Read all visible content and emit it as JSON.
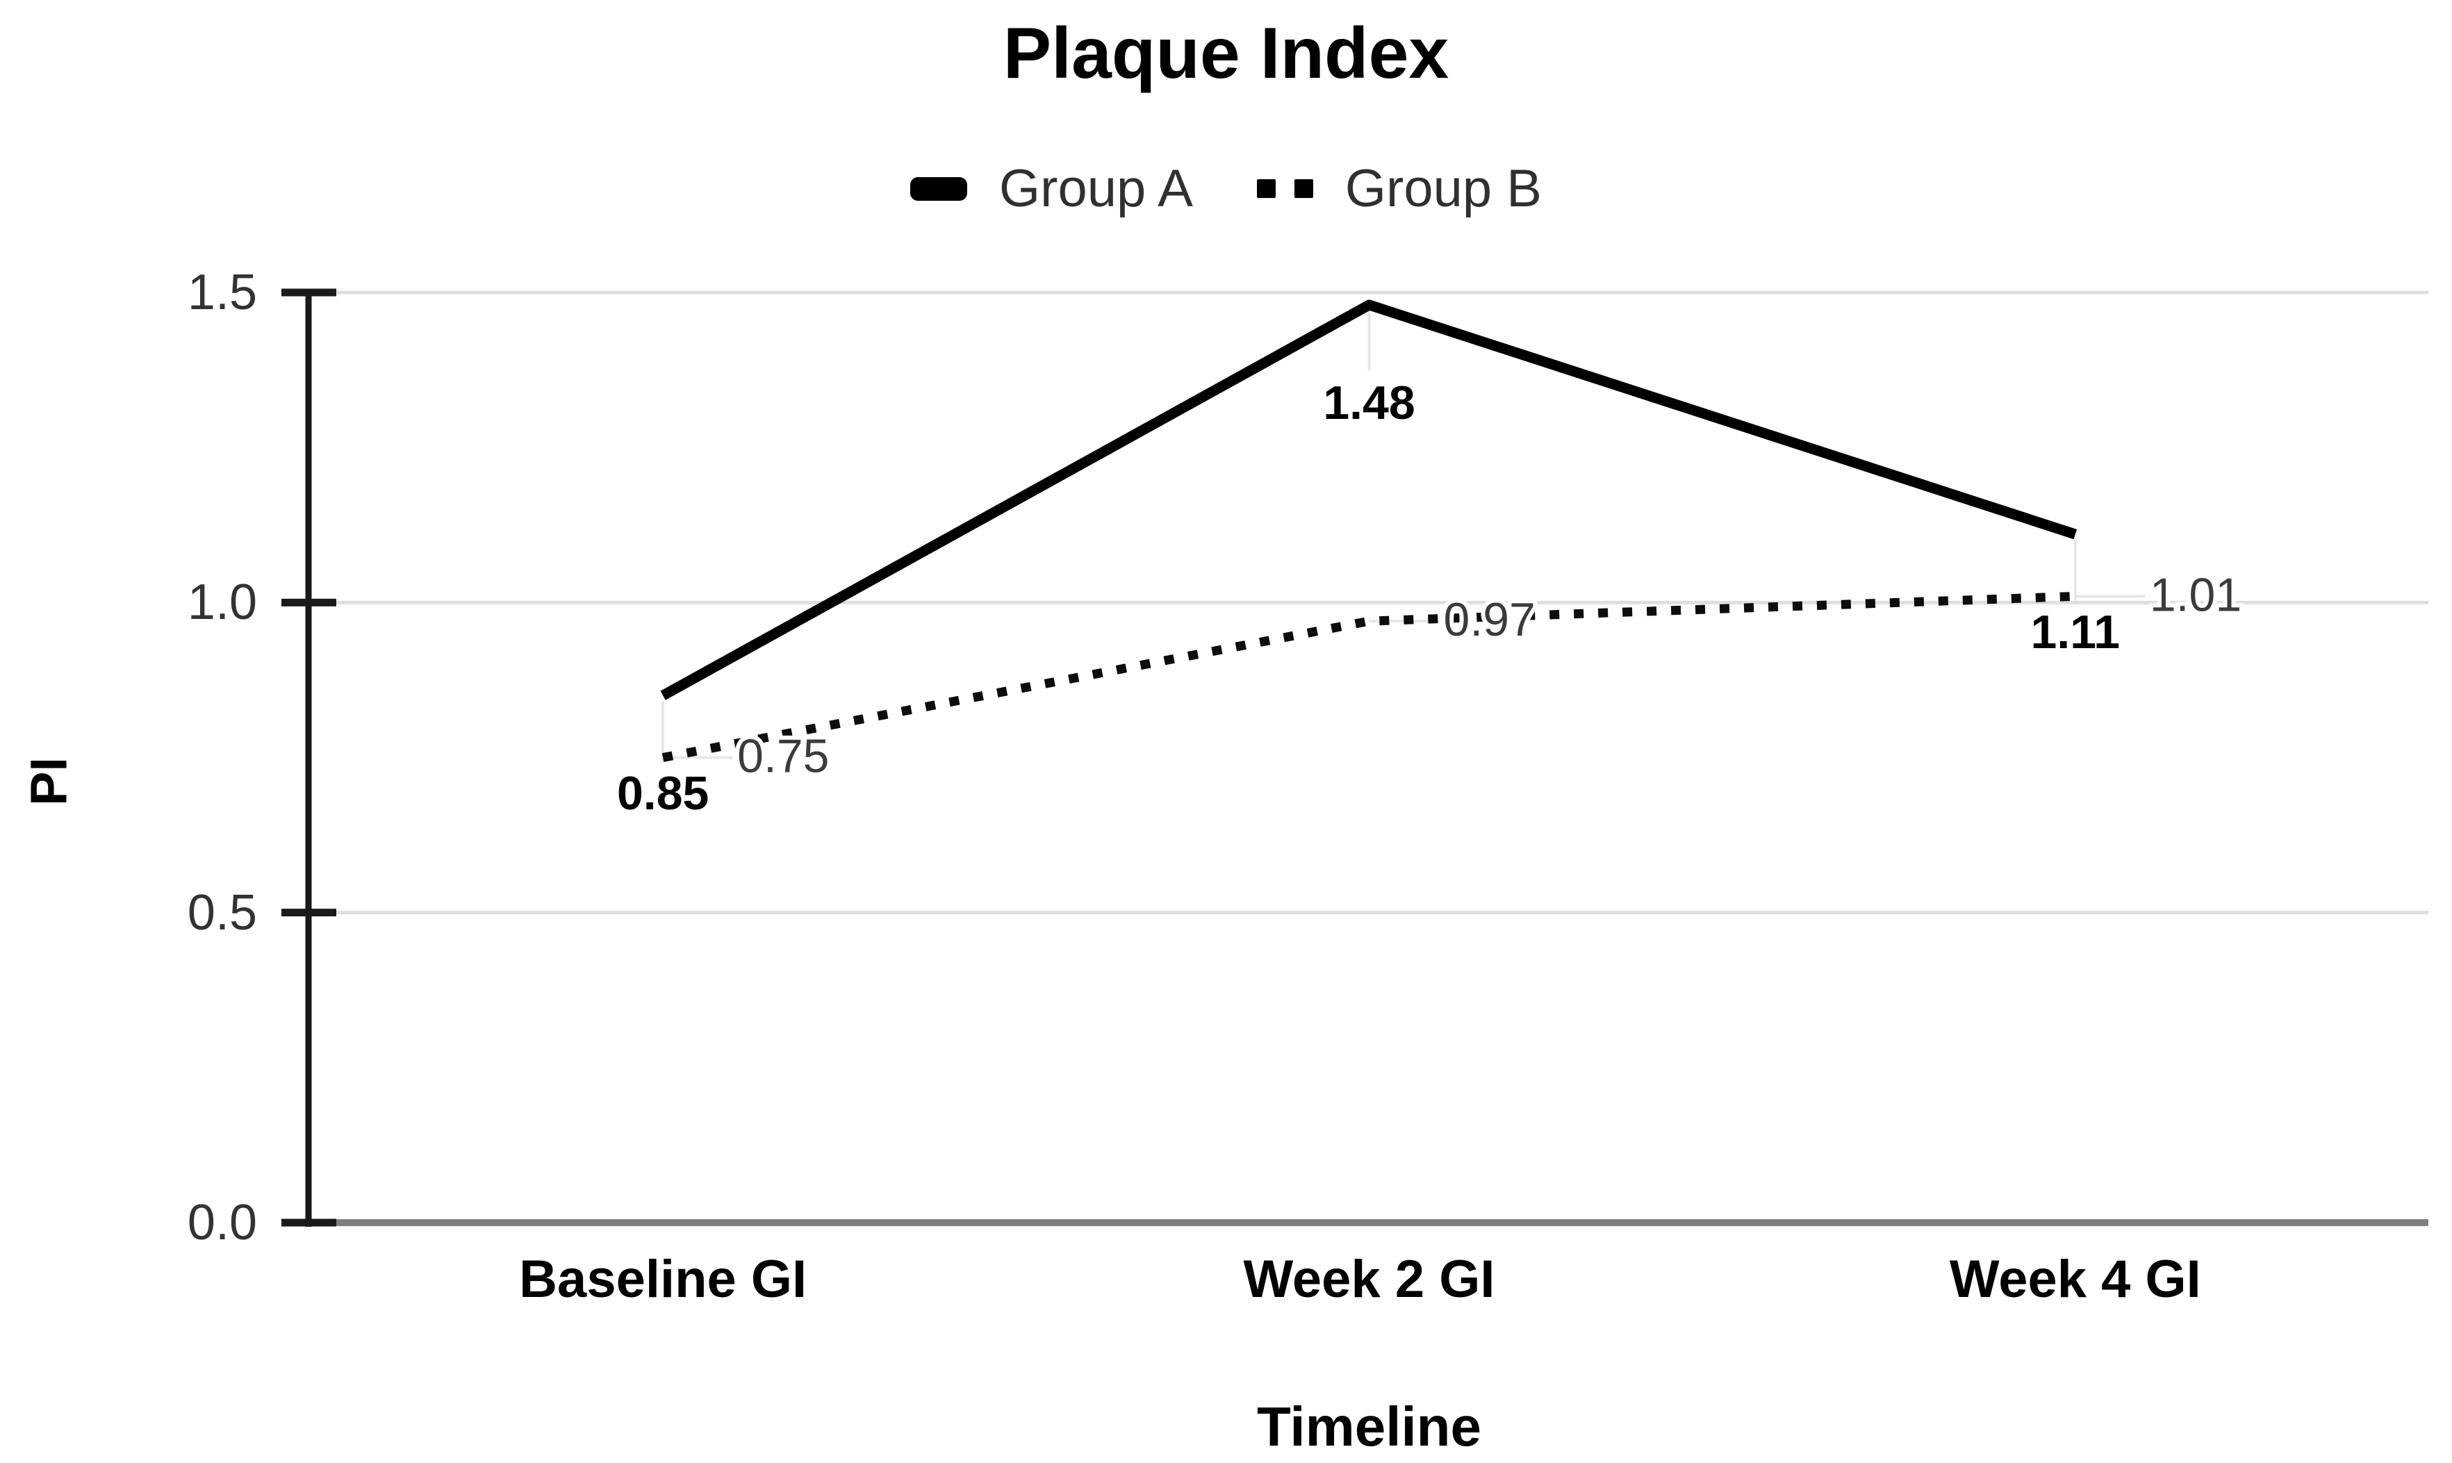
{
  "page": {
    "background": "#ffffff"
  },
  "chart_data": {
    "type": "line",
    "title": "Plaque Index",
    "xlabel": "Timeline",
    "ylabel": "PI",
    "categories": [
      "Baseline GI",
      "Week 2 GI",
      "Week 4 GI"
    ],
    "series": [
      {
        "name": "Group A",
        "style": "solid",
        "values": [
          0.85,
          1.48,
          1.11
        ],
        "labels": [
          "0.85",
          "1.48",
          "1.11"
        ]
      },
      {
        "name": "Group B",
        "style": "dotted",
        "values": [
          0.75,
          0.97,
          1.01
        ],
        "labels": [
          "0.75",
          "0.97",
          "1.01"
        ]
      }
    ],
    "ylim": [
      0,
      1.5
    ],
    "yticks": [
      1.5,
      1.0,
      0.5,
      0.0
    ],
    "ytick_labels": [
      "1.5",
      "1.0",
      "0.5",
      "0.0"
    ],
    "grid": true,
    "legend_position": "top-center",
    "colors": {
      "series_a": "#000000",
      "series_b": "#0d0d0d",
      "gridline": "#dedede",
      "baseline_axis": "#7f7f7f",
      "axis": "#1a1a1a",
      "label_a": "#000000",
      "label_b": "#3b3b3b",
      "tick_label": "#333333",
      "leader": "#e7e7e7",
      "legend_text": "#303030"
    }
  }
}
